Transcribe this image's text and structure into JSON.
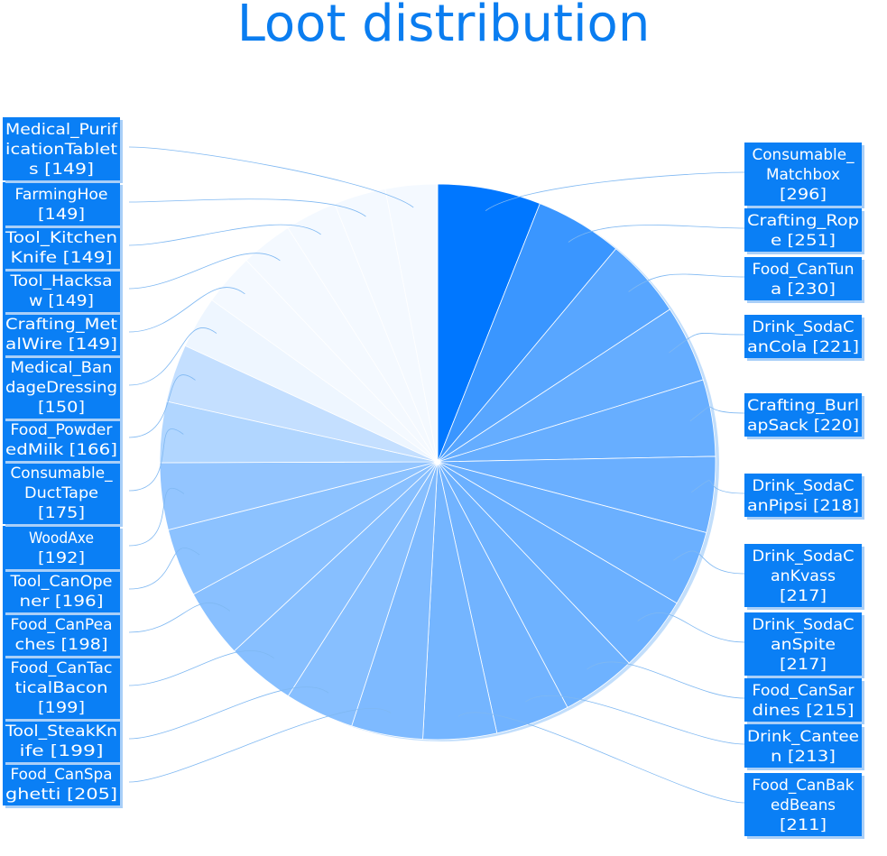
{
  "title": "Loot distribution",
  "chart_data": {
    "type": "pie",
    "title": "Loot distribution",
    "start_angle_deg": 0,
    "direction": "clockwise",
    "slices": [
      {
        "label": "Consumable_Matchbox",
        "value": 296
      },
      {
        "label": "Crafting_Rope",
        "value": 251
      },
      {
        "label": "Food_CanTuna",
        "value": 230
      },
      {
        "label": "Drink_SodaCanCola",
        "value": 221
      },
      {
        "label": "Crafting_BurlapSack",
        "value": 220
      },
      {
        "label": "Drink_SodaCanPipsi",
        "value": 218
      },
      {
        "label": "Drink_SodaCanKvass",
        "value": 217
      },
      {
        "label": "Drink_SodaCanSpite",
        "value": 217
      },
      {
        "label": "Food_CanSardines",
        "value": 215
      },
      {
        "label": "Drink_Canteen",
        "value": 213
      },
      {
        "label": "Food_CanBakedBeans",
        "value": 211
      },
      {
        "label": "Food_CanSpaghetti",
        "value": 205
      },
      {
        "label": "Tool_SteakKnife",
        "value": 199
      },
      {
        "label": "Food_CanTacticalBacon",
        "value": 199
      },
      {
        "label": "Food_CanPeaches",
        "value": 198
      },
      {
        "label": "Tool_CanOpener",
        "value": 196
      },
      {
        "label": "WoodAxe",
        "value": 192
      },
      {
        "label": "Consumable_DuctTape",
        "value": 175
      },
      {
        "label": "Food_PowderedMilk",
        "value": 166
      },
      {
        "label": "Medical_BandageDressing",
        "value": 150
      },
      {
        "label": "Crafting_MetalWire",
        "value": 149
      },
      {
        "label": "Tool_Hacksaw",
        "value": 149
      },
      {
        "label": "Tool_KitchenKnife",
        "value": 149
      },
      {
        "label": "FarmingHoe",
        "value": 149
      },
      {
        "label": "Medical_PurificationTablets",
        "value": 149
      }
    ],
    "labels": [
      [
        "Consumable_",
        "Matchbox",
        "[296]"
      ],
      [
        "Crafting_Rop",
        "e [251]"
      ],
      [
        "Food_CanTun",
        "a [230]"
      ],
      [
        "Drink_SodaC",
        "anCola [221]"
      ],
      [
        "Crafting_Burl",
        "apSack [220]"
      ],
      [
        "Drink_SodaC",
        "anPipsi [218]"
      ],
      [
        "Drink_SodaC",
        "anKvass",
        "[217]"
      ],
      [
        "Drink_SodaC",
        "anSpite",
        "[217]"
      ],
      [
        "Food_CanSar",
        "dines [215]"
      ],
      [
        "Drink_Cantee",
        "n [213]"
      ],
      [
        "Food_CanBak",
        "edBeans",
        "[211]"
      ],
      [
        "Food_CanSpa",
        "ghetti [205]"
      ],
      [
        "Tool_SteakKn",
        "ife [199]"
      ],
      [
        "Food_CanTac",
        "ticalBacon",
        "[199]"
      ],
      [
        "Food_CanPea",
        "ches [198]"
      ],
      [
        "Tool_CanOpe",
        "ner [196]"
      ],
      [
        "WoodAxe",
        "[192]"
      ],
      [
        "Consumable_",
        "DuctTape",
        "[175]"
      ],
      [
        "Food_Powder",
        "edMilk [166]"
      ],
      [
        "Medical_Ban",
        "dageDressing",
        "[150]"
      ],
      [
        "Crafting_Met",
        "alWire [149]"
      ],
      [
        "Tool_Hacksa",
        "w [149]"
      ],
      [
        "Tool_Kitchen",
        "Knife [149]"
      ],
      [
        "FarmingHoe",
        "[149]"
      ],
      [
        "Medical_Purif",
        "icationTablet",
        "s [149]"
      ]
    ],
    "colors": {
      "max": "#0077ff",
      "min": "#f4f9ff",
      "text": "#0a7df0",
      "label_bg": "#0a7ff5"
    }
  }
}
